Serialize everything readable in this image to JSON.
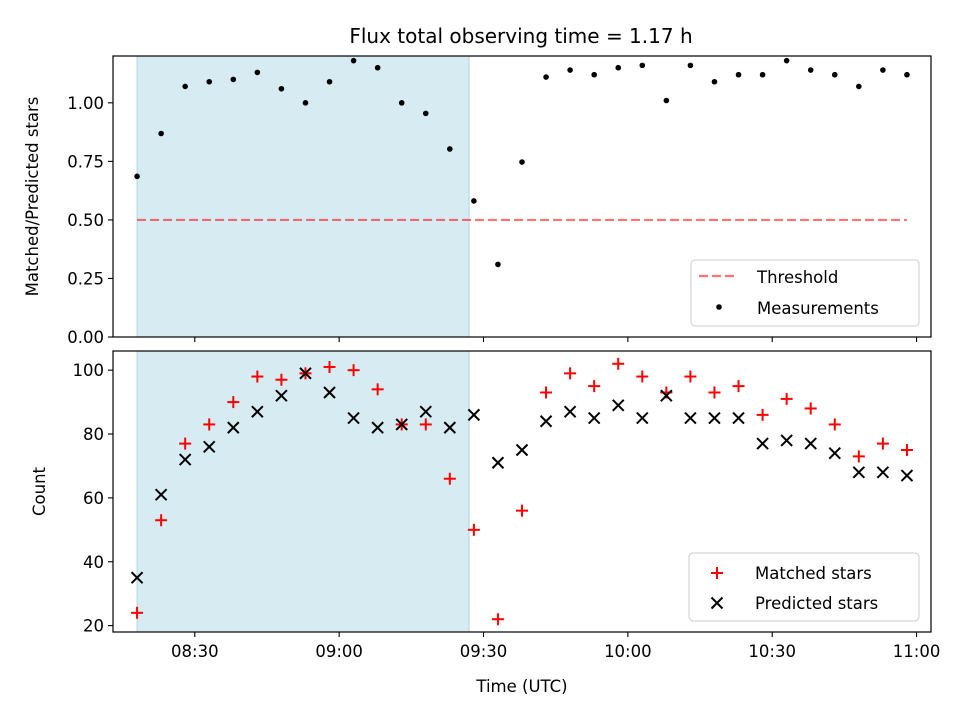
{
  "title": "Flux total observing time = 1.17 h",
  "colors": {
    "span": "#add8e6",
    "threshold": "#ff0000",
    "measurements": "#000000",
    "matched": "#ff0000",
    "predicted": "#000000"
  },
  "chart_data": [
    {
      "type": "scatter",
      "panel": "top",
      "ylabel": "Matched/Predicted stars",
      "xlabel": "",
      "ylim": [
        0,
        1.2
      ],
      "yticks": [
        "0.00",
        "0.25",
        "0.50",
        "0.75",
        "1.00"
      ],
      "ytick_values": [
        0,
        0.25,
        0.5,
        0.75,
        1.0
      ],
      "xlim_minutes": [
        8.25,
        11.05
      ],
      "shaded_span": [
        "08:18",
        "09:27"
      ],
      "legend": {
        "position": "lower-right",
        "entries": [
          "Threshold",
          "Measurements"
        ]
      },
      "threshold": {
        "name": "Threshold",
        "value": 0.5,
        "x_start": "08:18",
        "x_end": "10:58"
      },
      "series": [
        {
          "name": "Measurements",
          "x": [
            "08:18",
            "08:23",
            "08:28",
            "08:33",
            "08:38",
            "08:43",
            "08:48",
            "08:53",
            "08:58",
            "09:03",
            "09:08",
            "09:13",
            "09:18",
            "09:23",
            "09:28",
            "09:33",
            "09:38",
            "09:43",
            "09:48",
            "09:53",
            "09:58",
            "10:03",
            "10:08",
            "10:13",
            "10:18",
            "10:23",
            "10:28",
            "10:33",
            "10:38",
            "10:43",
            "10:48",
            "10:53",
            "10:58"
          ],
          "y": [
            0.686,
            0.869,
            1.07,
            1.09,
            1.1,
            1.13,
            1.06,
            1.0,
            1.09,
            1.18,
            1.15,
            1.0,
            0.955,
            0.803,
            0.581,
            0.31,
            0.747,
            1.11,
            1.14,
            1.12,
            1.15,
            1.16,
            1.01,
            1.16,
            1.09,
            1.12,
            1.12,
            1.18,
            1.14,
            1.12,
            1.07,
            1.14,
            1.12
          ]
        }
      ]
    },
    {
      "type": "scatter",
      "panel": "bottom",
      "ylabel": "Count",
      "xlabel": "Time (UTC)",
      "ylim": [
        18,
        106
      ],
      "yticks": [
        "20",
        "40",
        "60",
        "80",
        "100"
      ],
      "ytick_values": [
        20,
        40,
        60,
        80,
        100
      ],
      "xticks": [
        "08:30",
        "09:00",
        "09:30",
        "10:00",
        "10:30",
        "11:00"
      ],
      "shaded_span": [
        "08:18",
        "09:27"
      ],
      "legend": {
        "position": "lower-right",
        "entries": [
          "Matched stars",
          "Predicted stars"
        ]
      },
      "series": [
        {
          "name": "Matched stars",
          "marker": "+",
          "x": [
            "08:18",
            "08:23",
            "08:28",
            "08:33",
            "08:38",
            "08:43",
            "08:48",
            "08:53",
            "08:58",
            "09:03",
            "09:08",
            "09:13",
            "09:18",
            "09:23",
            "09:28",
            "09:33",
            "09:38",
            "09:43",
            "09:48",
            "09:53",
            "09:58",
            "10:03",
            "10:08",
            "10:13",
            "10:18",
            "10:23",
            "10:28",
            "10:33",
            "10:38",
            "10:43",
            "10:48",
            "10:53",
            "10:58"
          ],
          "y": [
            24,
            53,
            77,
            83,
            90,
            98,
            97,
            99,
            101,
            100,
            94,
            83,
            83,
            66,
            50,
            22,
            56,
            93,
            99,
            95,
            102,
            98,
            93,
            98,
            93,
            95,
            86,
            91,
            88,
            83,
            73,
            77,
            75
          ]
        },
        {
          "name": "Predicted stars",
          "marker": "x",
          "x": [
            "08:18",
            "08:23",
            "08:28",
            "08:33",
            "08:38",
            "08:43",
            "08:48",
            "08:53",
            "08:58",
            "09:03",
            "09:08",
            "09:13",
            "09:18",
            "09:23",
            "09:28",
            "09:33",
            "09:38",
            "09:43",
            "09:48",
            "09:53",
            "09:58",
            "10:03",
            "10:08",
            "10:13",
            "10:18",
            "10:23",
            "10:28",
            "10:33",
            "10:38",
            "10:43",
            "10:48",
            "10:53",
            "10:58"
          ],
          "y": [
            35,
            61,
            72,
            76,
            82,
            87,
            92,
            99,
            93,
            85,
            82,
            83,
            87,
            82,
            86,
            71,
            75,
            84,
            87,
            85,
            89,
            85,
            92,
            85,
            85,
            85,
            77,
            78,
            77,
            74,
            68,
            68,
            67
          ]
        }
      ]
    }
  ]
}
